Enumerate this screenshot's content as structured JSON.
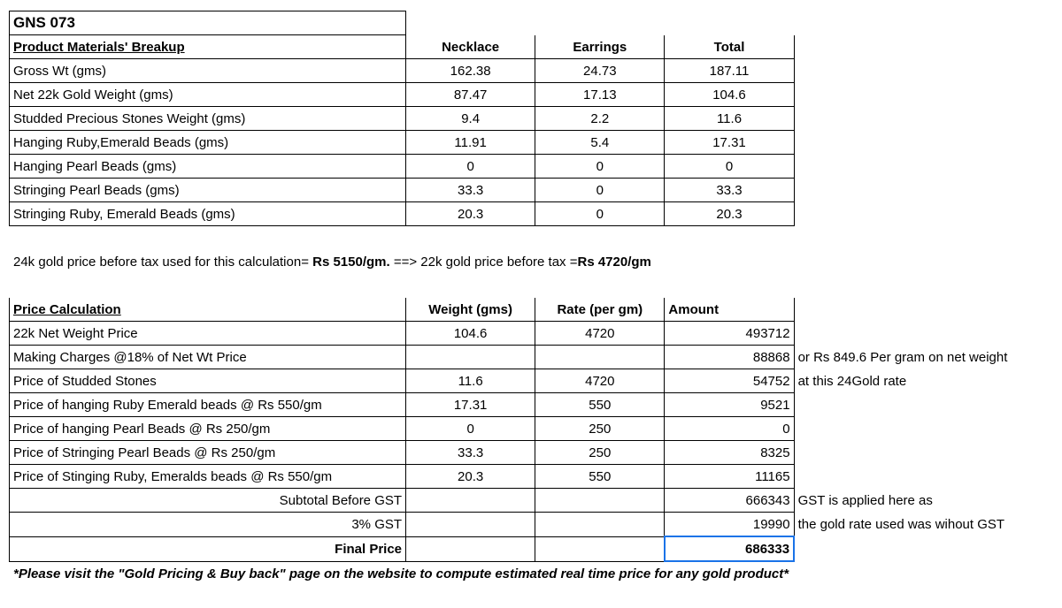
{
  "title": "GNS 073",
  "materials": {
    "header": "Product Materials' Breakup",
    "cols": [
      "Necklace",
      "Earrings",
      "Total"
    ],
    "rows": [
      {
        "label": "Gross Wt (gms)",
        "v": [
          "162.38",
          "24.73",
          "187.11"
        ]
      },
      {
        "label": "Net 22k Gold Weight (gms)",
        "v": [
          "87.47",
          "17.13",
          "104.6"
        ]
      },
      {
        "label": "Studded Precious Stones Weight (gms)",
        "v": [
          "9.4",
          "2.2",
          "11.6"
        ]
      },
      {
        "label": "Hanging Ruby,Emerald Beads (gms)",
        "v": [
          "11.91",
          "5.4",
          "17.31"
        ]
      },
      {
        "label": "Hanging Pearl Beads (gms)",
        "v": [
          "0",
          "0",
          "0"
        ]
      },
      {
        "label": "Stringing Pearl Beads (gms)",
        "v": [
          "33.3",
          "0",
          "33.3"
        ]
      },
      {
        "label": "Stringing Ruby, Emerald Beads (gms)",
        "v": [
          "20.3",
          "0",
          "20.3"
        ]
      }
    ]
  },
  "rate_note": {
    "pre": "24k gold price before tax used for this calculation= ",
    "mid": "Rs 5150/gm.",
    "post": " ==> 22k gold price before tax =",
    "tail": "Rs 4720/gm"
  },
  "calc": {
    "header": "Price Calculation",
    "cols": [
      "Weight (gms)",
      "Rate (per gm)",
      "Amount"
    ],
    "rows": [
      {
        "label": "22k Net Weight Price",
        "w": "104.6",
        "r": "4720",
        "a": "493712",
        "n": ""
      },
      {
        "label": " Making Charges @18% of Net Wt Price",
        "w": "",
        "r": "",
        "a": "88868",
        "n": "or Rs   849.6 Per gram on net weight"
      },
      {
        "label": "Price of Studded Stones",
        "w": "11.6",
        "r": "4720",
        "a": "54752",
        "n": "at this 24Gold rate"
      },
      {
        "label": "Price of hanging Ruby Emerald beads @ Rs 550/gm",
        "w": "17.31",
        "r": "550",
        "a": "9521",
        "n": ""
      },
      {
        "label": "Price of hanging Pearl Beads @ Rs 250/gm",
        "w": "0",
        "r": "250",
        "a": "0",
        "n": ""
      },
      {
        "label": "Price of Stringing Pearl Beads @ Rs 250/gm",
        "w": "33.3",
        "r": "250",
        "a": "8325",
        "n": ""
      },
      {
        "label": "Price of Stinging Ruby, Emeralds beads @ Rs 550/gm",
        "w": "20.3",
        "r": "550",
        "a": "11165",
        "n": ""
      }
    ],
    "subtotal": {
      "label": "Subtotal Before GST",
      "a": "666343",
      "n": "GST is applied here as"
    },
    "gst": {
      "label": "3% GST",
      "a": "19990",
      "n": "the gold rate used was wihout GST"
    },
    "final": {
      "label": "Final Price",
      "a": "686333",
      "n": ""
    }
  },
  "footer": "*Please visit the \"Gold Pricing & Buy back\" page on the website to compute estimated real time price for any gold product*",
  "style": {
    "selection_color": "#1a73e8",
    "border_color": "#000000",
    "font_family": "Arial"
  }
}
